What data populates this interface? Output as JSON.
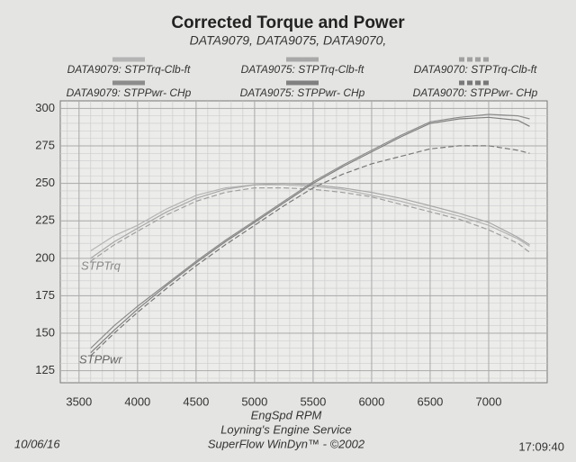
{
  "chart_data": {
    "type": "line",
    "title": "Corrected Torque and Power",
    "subtitle": "DATA9079, DATA9075, DATA9070,",
    "xlabel": "EngSpd  RPM",
    "footer": [
      "Loyning's Engine Service",
      "SuperFlow WinDyn™ - ©2002"
    ],
    "date": "10/06/16",
    "time": "17:09:40",
    "annotations": [
      "STPTrq",
      "STPPwr"
    ],
    "x": [
      3600,
      3800,
      4000,
      4250,
      4500,
      4750,
      5000,
      5250,
      5500,
      5750,
      6000,
      6250,
      6500,
      6750,
      7000,
      7250,
      7350
    ],
    "series": [
      {
        "name": "DATA9079: STPTrq-Clb-ft",
        "color": "#b4b4b4",
        "dash": "",
        "values": [
          205,
          215,
          222,
          233,
          242,
          247,
          249,
          249,
          248,
          246,
          242,
          238,
          233,
          228,
          222,
          213,
          208
        ]
      },
      {
        "name": "DATA9075: STPTrq-Clb-ft",
        "color": "#a8a8a8",
        "dash": "",
        "values": [
          200,
          211,
          220,
          231,
          240,
          246,
          249,
          250,
          249,
          247,
          244,
          240,
          235,
          230,
          224,
          214,
          209
        ]
      },
      {
        "name": "DATA9070: STPTrq-Clb-ft",
        "color": "#a0a0a0",
        "dash": "6 3",
        "values": [
          198,
          209,
          218,
          229,
          238,
          244,
          247,
          247,
          246,
          244,
          241,
          236,
          231,
          226,
          219,
          210,
          204
        ]
      },
      {
        "name": "DATA9079: STPPwr- CHp",
        "color": "#8c8c8c",
        "dash": "",
        "values": [
          140,
          155,
          168,
          183,
          198,
          212,
          225,
          238,
          251,
          262,
          272,
          282,
          291,
          294,
          296,
          295,
          293
        ]
      },
      {
        "name": "DATA9075: STPPwr- CHp",
        "color": "#808080",
        "dash": "",
        "values": [
          137,
          152,
          166,
          182,
          197,
          211,
          224,
          237,
          250,
          261,
          271,
          281,
          290,
          293,
          294,
          292,
          288
        ]
      },
      {
        "name": "DATA9070: STPPwr- CHp",
        "color": "#787878",
        "dash": "6 3",
        "values": [
          135,
          150,
          164,
          180,
          195,
          209,
          222,
          235,
          247,
          256,
          263,
          268,
          273,
          275,
          275,
          272,
          270
        ]
      }
    ],
    "xlim": [
      3340,
      7500
    ],
    "ylim": [
      117,
      305
    ],
    "xticks": [
      3500,
      4000,
      4500,
      5000,
      5500,
      6000,
      6500,
      7000
    ],
    "yticks": [
      125,
      150,
      175,
      200,
      225,
      250,
      275,
      300
    ],
    "xminor": [
      3400,
      3500,
      3600,
      3700,
      3800,
      3900,
      4000,
      4100,
      4200,
      4300,
      4400,
      4500,
      4600,
      4700,
      4800,
      4900,
      5000,
      5100,
      5200,
      5300,
      5400,
      5500,
      5600,
      5700,
      5800,
      5900,
      6000,
      6100,
      6200,
      6300,
      6400,
      6500,
      6600,
      6700,
      6800,
      6900,
      7000,
      7100,
      7200,
      7300,
      7400
    ],
    "yminor": [
      120,
      125,
      130,
      135,
      140,
      145,
      150,
      155,
      160,
      165,
      170,
      175,
      180,
      185,
      190,
      195,
      200,
      205,
      210,
      215,
      220,
      225,
      230,
      235,
      240,
      245,
      250,
      255,
      260,
      265,
      270,
      275,
      280,
      285,
      290,
      295,
      300
    ],
    "grid": true
  }
}
